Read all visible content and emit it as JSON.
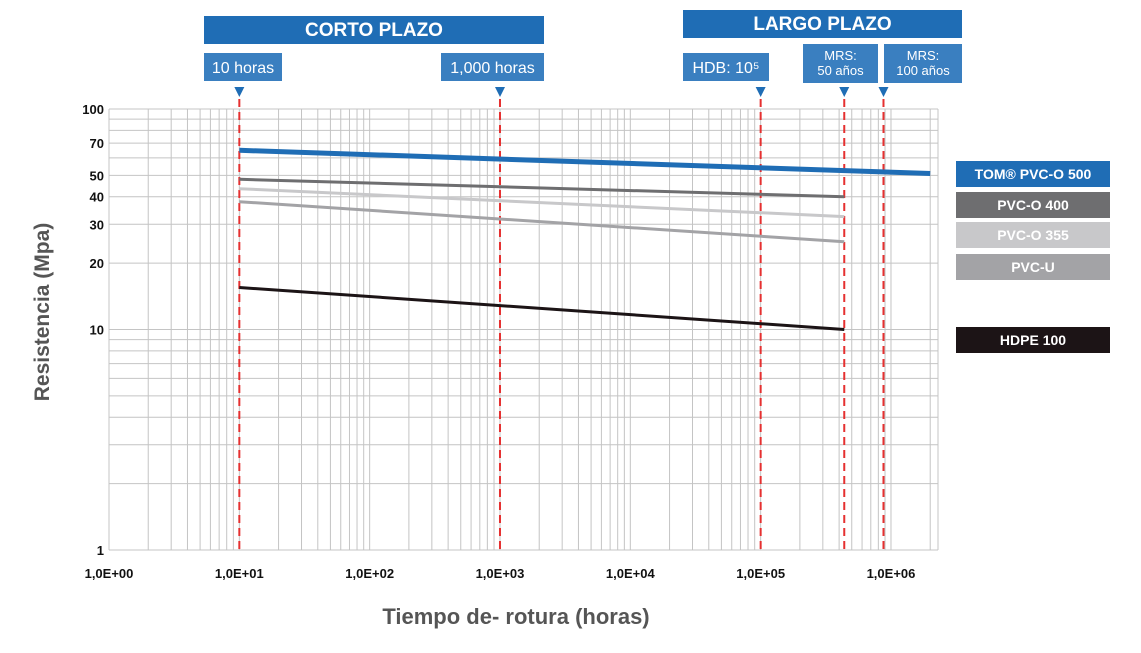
{
  "chart_data": {
    "type": "line",
    "x_scale": "log",
    "y_scale": "log",
    "xlim": [
      1,
      2500000
    ],
    "ylim": [
      1,
      100
    ],
    "xlabel": "Tiempo de- rotura (horas)",
    "ylabel": "Resistencia (Mpa)",
    "x_ticks": [
      {
        "value": 1,
        "label": "1,0E+00"
      },
      {
        "value": 10,
        "label": "1,0E+01"
      },
      {
        "value": 100,
        "label": "1,0E+02"
      },
      {
        "value": 1000,
        "label": "1,0E+03"
      },
      {
        "value": 10000,
        "label": "1,0E+04"
      },
      {
        "value": 100000,
        "label": "1,0E+05"
      },
      {
        "value": 1000000,
        "label": "1,0E+06"
      }
    ],
    "y_ticks": [
      {
        "value": 100,
        "label": "100"
      },
      {
        "value": 70,
        "label": "70"
      },
      {
        "value": 50,
        "label": "50"
      },
      {
        "value": 40,
        "label": "40"
      },
      {
        "value": 30,
        "label": "30"
      },
      {
        "value": 20,
        "label": "20"
      },
      {
        "value": 10,
        "label": "10"
      },
      {
        "value": 1,
        "label": "1"
      }
    ],
    "grid": true,
    "series": [
      {
        "name": "TOM® PVC-O 500",
        "color": "#1f6db5",
        "x": [
          10,
          2000000
        ],
        "y": [
          65,
          51
        ]
      },
      {
        "name": "PVC-O 400",
        "color": "#6e6e70",
        "x": [
          10,
          438000
        ],
        "y": [
          48,
          40
        ]
      },
      {
        "name": "PVC-O 355",
        "color": "#c8c8ca",
        "x": [
          10,
          438000
        ],
        "y": [
          43.5,
          32.5
        ]
      },
      {
        "name": "PVC-U",
        "color": "#a3a3a6",
        "x": [
          10,
          438000
        ],
        "y": [
          38,
          25
        ]
      },
      {
        "name": "HDPE 100",
        "color": "#1c1416",
        "x": [
          10,
          438000
        ],
        "y": [
          15.5,
          10
        ]
      }
    ],
    "markers": [
      {
        "x": 10,
        "label": "10 horas"
      },
      {
        "x": 1000,
        "label": "1,000 horas"
      },
      {
        "x": 100000,
        "label": "HDB: 10⁵"
      },
      {
        "x": 438000,
        "label": "MRS: 50 años"
      },
      {
        "x": 876000,
        "label": "MRS: 100 años"
      }
    ],
    "headers": [
      {
        "label": "CORTO PLAZO"
      },
      {
        "label": "LARGO PLAZO"
      }
    ],
    "legend_placement": "right",
    "colors": {
      "header_bg": "#1f6db5",
      "marker_box_bg": "#3a7fc0",
      "marker_line": "#e53030",
      "arrow": "#1f6db5",
      "grid": "#c4c4c4"
    }
  }
}
